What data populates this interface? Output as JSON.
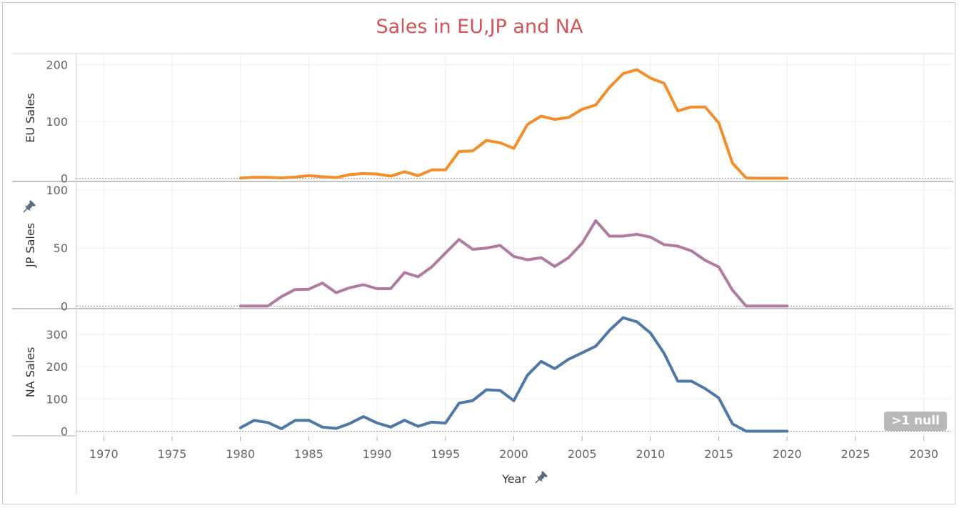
{
  "chart_data": {
    "type": "line",
    "title": "Sales in EU,JP and NA",
    "xlabel": "Year",
    "xlim": [
      1968,
      2032
    ],
    "x_ticks": [
      "1970",
      "1975",
      "1980",
      "1985",
      "1990",
      "1995",
      "2000",
      "2005",
      "2010",
      "2015",
      "2020",
      "2025",
      "2030"
    ],
    "x": [
      1980,
      1981,
      1982,
      1983,
      1984,
      1985,
      1986,
      1987,
      1988,
      1989,
      1990,
      1991,
      1992,
      1993,
      1994,
      1995,
      1996,
      1997,
      1998,
      1999,
      2000,
      2001,
      2002,
      2003,
      2004,
      2005,
      2006,
      2007,
      2008,
      2009,
      2010,
      2011,
      2012,
      2013,
      2014,
      2015,
      2016,
      2017,
      2018,
      2019,
      2020
    ],
    "panels": [
      {
        "ylabel": "EU Sales",
        "ylim": [
          -3,
          216
        ],
        "y_ticks": [
          "0",
          "100",
          "200"
        ],
        "color": "#f28e2b",
        "values": [
          0.5,
          1.9,
          1.7,
          0.8,
          2.1,
          4.7,
          2.8,
          1.4,
          6.6,
          8.4,
          7.6,
          3.9,
          11.7,
          4.7,
          14.9,
          14.9,
          47.3,
          48.3,
          66.9,
          62.7,
          52.8,
          94.9,
          109.7,
          103.8,
          107.3,
          121.6,
          129.3,
          160.2,
          184.4,
          191.6,
          176.6,
          167.4,
          118.8,
          125.7,
          125.7,
          97.7,
          26.8,
          0.6,
          0.2,
          0.2,
          0.2
        ]
      },
      {
        "ylabel": "JP Sales",
        "ylim": [
          -1,
          105
        ],
        "y_ticks": [
          "0",
          "50",
          "100"
        ],
        "color": "#b07aa1",
        "values": [
          0,
          0,
          0,
          8.1,
          14.3,
          14.6,
          19.8,
          11.6,
          15.8,
          18.4,
          15,
          15,
          28.9,
          25.3,
          33.8,
          45.7,
          57.4,
          48.9,
          50,
          52.3,
          42.8,
          39.9,
          41.8,
          34.2,
          41.7,
          54.2,
          73.7,
          60.3,
          60.3,
          61.9,
          59.5,
          53,
          51.7,
          47.6,
          39.5,
          33.7,
          13.7,
          0,
          0,
          0,
          0
        ]
      },
      {
        "ylabel": "NA Sales",
        "ylim": [
          -10,
          375
        ],
        "y_ticks": [
          "0",
          "100",
          "200",
          "300"
        ],
        "color": "#4e79a7",
        "values": [
          10.6,
          33.4,
          26.9,
          7.8,
          33.3,
          33.7,
          12.5,
          8.5,
          23.9,
          45.2,
          25.5,
          12.8,
          33.9,
          15.1,
          28.2,
          24.8,
          86.8,
          94.8,
          128.4,
          126.1,
          94.5,
          173.1,
          216.2,
          193.6,
          222.6,
          242.6,
          263.1,
          312.1,
          351.4,
          338.9,
          304.2,
          241.1,
          154.9,
          154.8,
          131.9,
          102.8,
          22.7,
          0,
          0,
          0,
          0
        ]
      }
    ],
    "null_note": ">1 null"
  },
  "colors": {
    "title": "#d4545a",
    "eu": "#f28e2b",
    "jp": "#b07aa1",
    "na": "#4e79a7"
  },
  "icons": {
    "jp_axis": "pin-icon",
    "year_axis": "pin-icon"
  }
}
